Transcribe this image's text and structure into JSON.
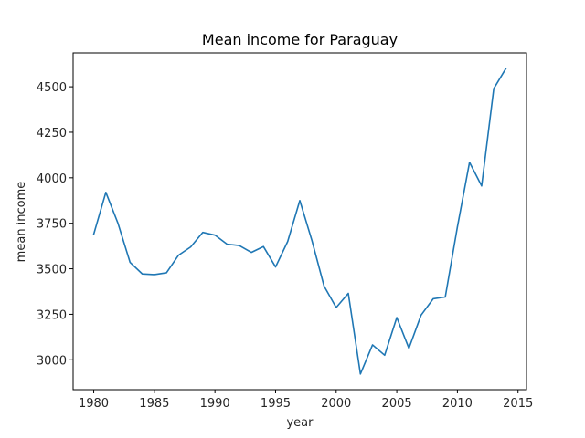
{
  "chart_data": {
    "type": "line",
    "title": "Mean income for Paraguay",
    "xlabel": "year",
    "ylabel": "mean income",
    "xlim": [
      1978.3,
      2015.7
    ],
    "ylim": [
      2836,
      4686
    ],
    "x_ticks": [
      1980,
      1985,
      1990,
      1995,
      2000,
      2005,
      2010,
      2015
    ],
    "y_ticks": [
      3000,
      3250,
      3500,
      3750,
      4000,
      4250,
      4500
    ],
    "x_tick_labels": [
      "1980",
      "1985",
      "1990",
      "1995",
      "2000",
      "2005",
      "2010",
      "2015"
    ],
    "y_tick_labels": [
      "3000",
      "3250",
      "3500",
      "3750",
      "4000",
      "4250",
      "4500"
    ],
    "grid": false,
    "series": [
      {
        "color": "#1f77b4",
        "x": [
          1980,
          1981,
          1982,
          1983,
          1984,
          1985,
          1986,
          1987,
          1988,
          1989,
          1990,
          1991,
          1992,
          1993,
          1994,
          1995,
          1996,
          1997,
          1998,
          1999,
          2000,
          2001,
          2002,
          2003,
          2004,
          2005,
          2006,
          2007,
          2008,
          2009,
          2010,
          2011,
          2012,
          2013,
          2014
        ],
        "values": [
          3690,
          3920,
          3750,
          3535,
          3472,
          3468,
          3478,
          3575,
          3620,
          3700,
          3685,
          3635,
          3628,
          3590,
          3622,
          3510,
          3650,
          3875,
          3655,
          3405,
          3287,
          3365,
          2922,
          3082,
          3025,
          3232,
          3063,
          3245,
          3335,
          3345,
          3730,
          4085,
          3955,
          4490,
          4600
        ]
      }
    ]
  }
}
